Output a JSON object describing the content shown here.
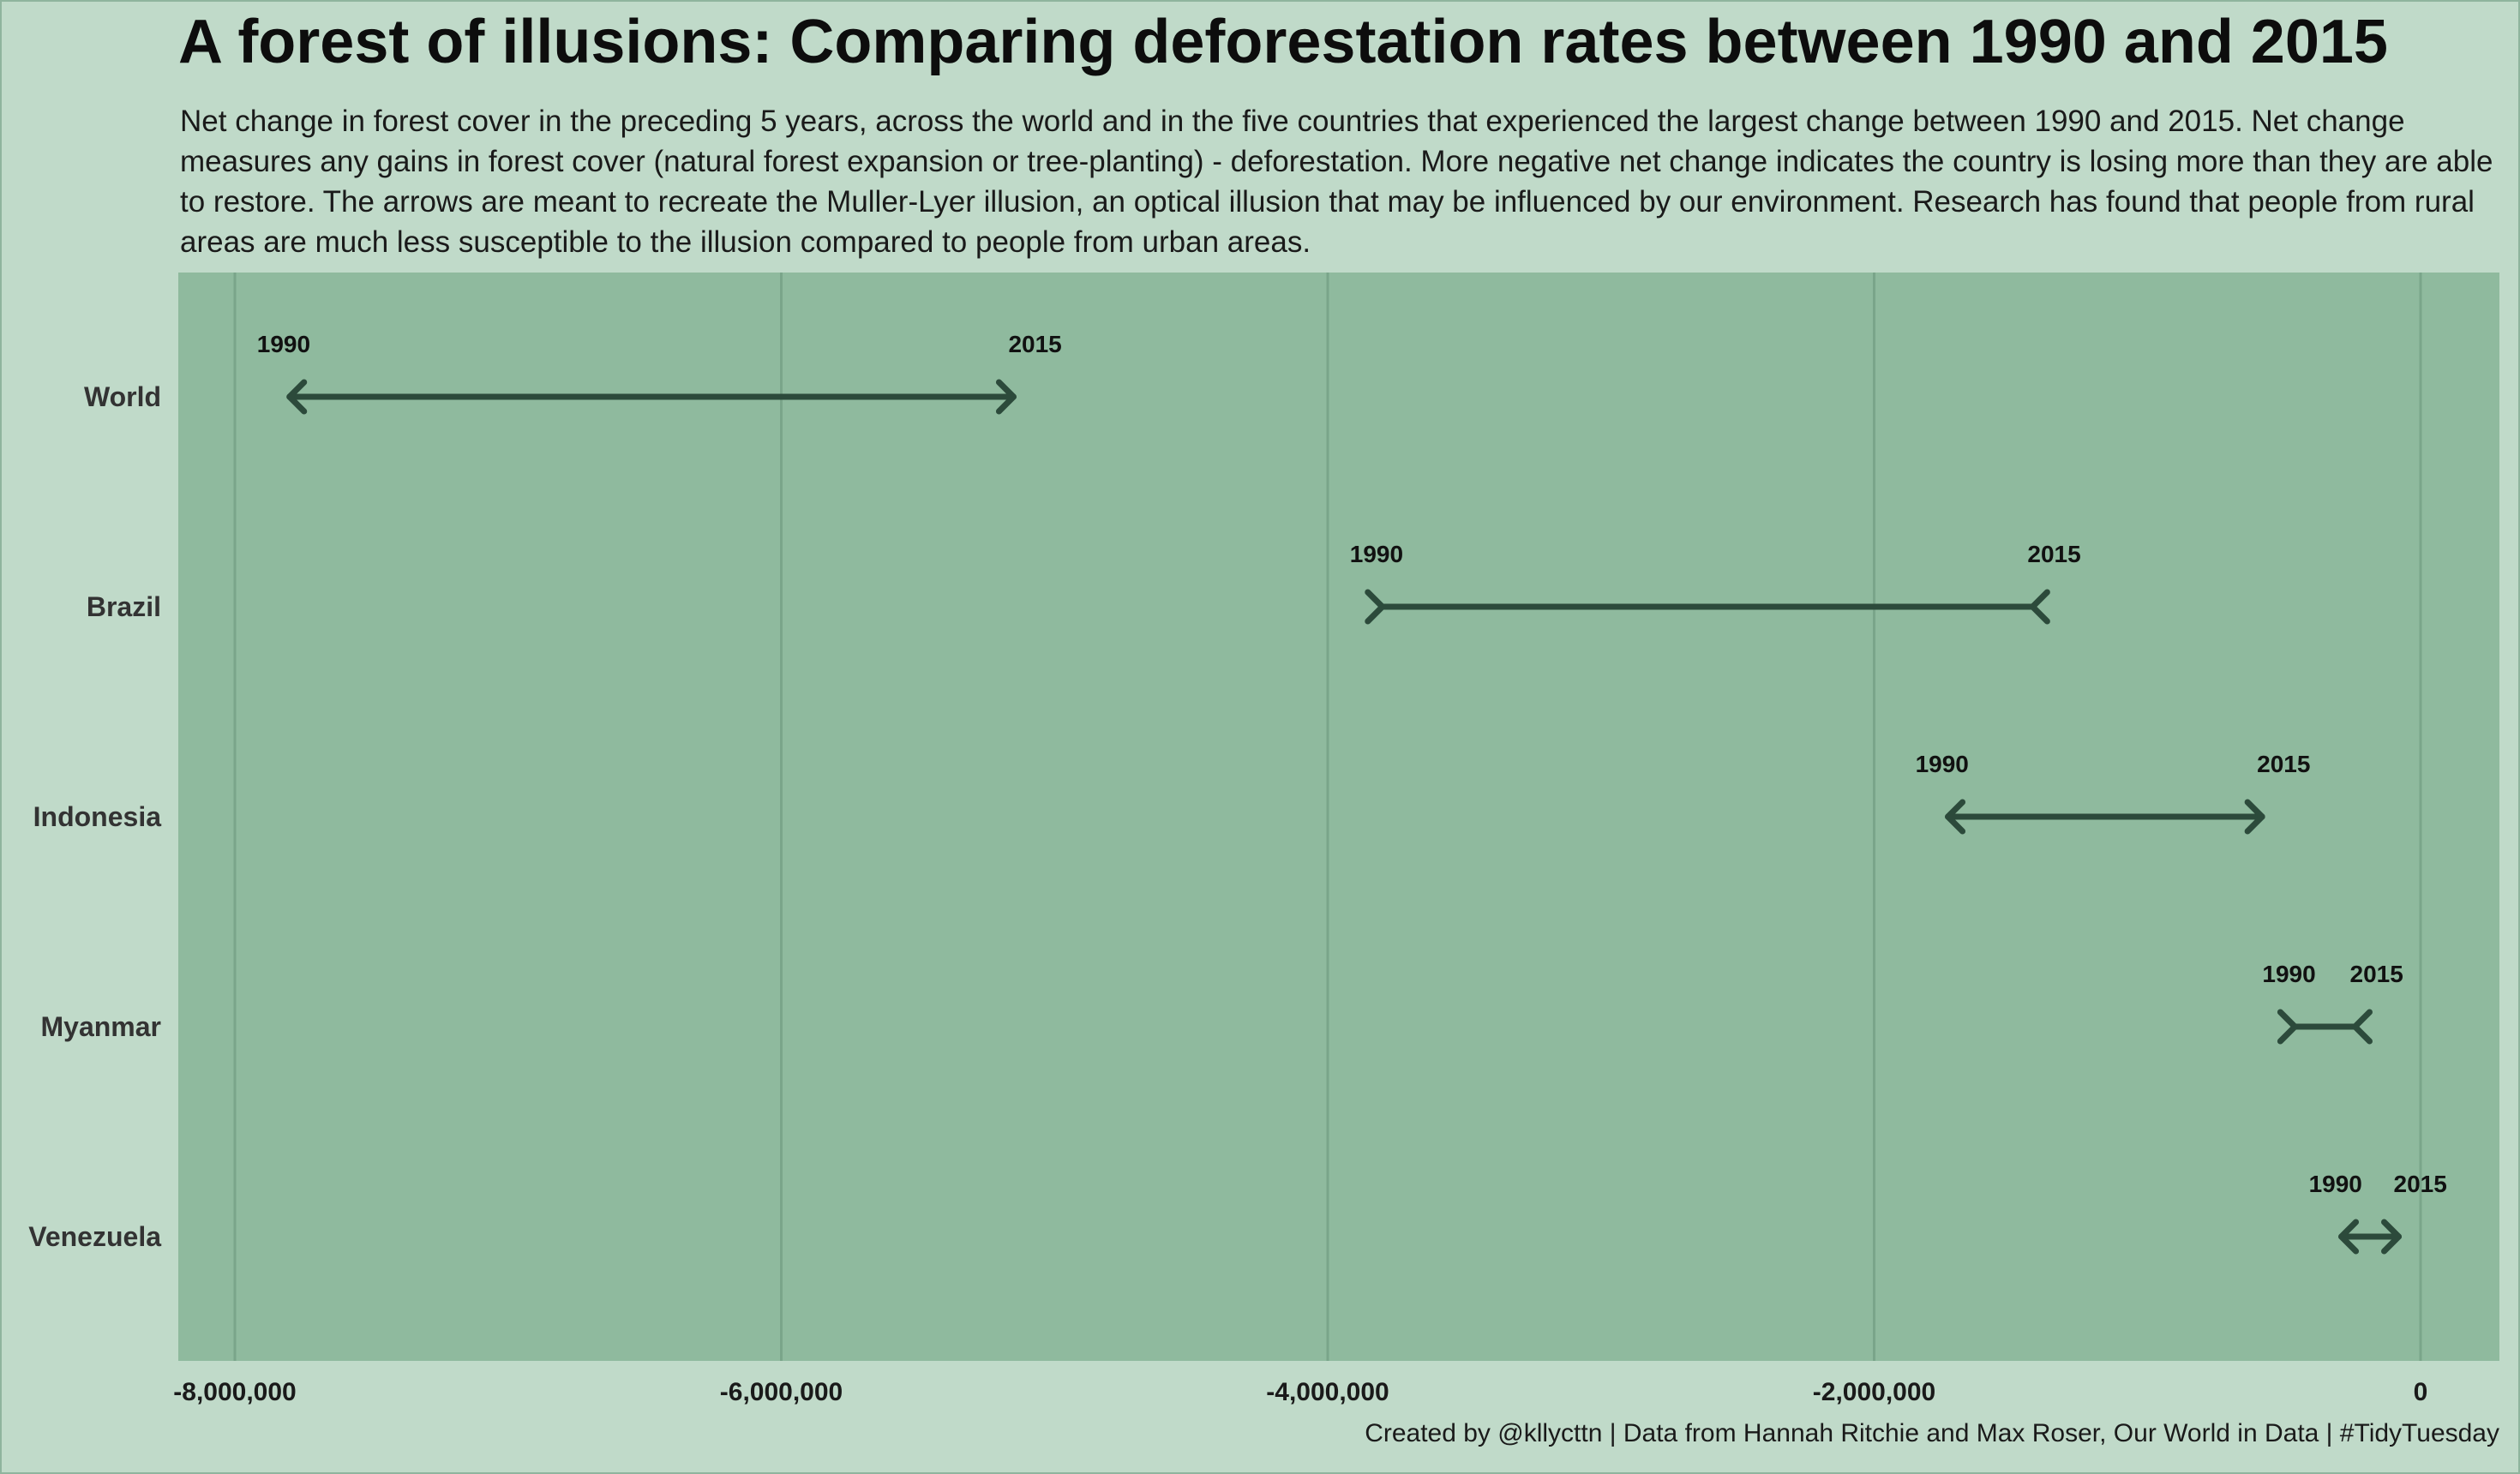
{
  "title": "A forest of illusions: Comparing deforestation rates between 1990 and 2015",
  "subtitle": "Net change in forest cover in the preceding 5 years, across the world and in the five countries that experienced the largest change between 1990 and 2015. Net change measures any gains in forest cover (natural forest expansion or tree-planting) - deforestation. More negative net change indicates the country is losing more than they are able to restore. The arrows are meant to recreate the Muller-Lyer illusion, an optical illusion that may be influenced by our environment. Research has found that people from rural areas are much less susceptible to the illusion compared to people from urban areas.",
  "caption": "Created by @kllycttn | Data from Hannah Ritchie and Max Roser, Our World in Data | #TidyTuesday",
  "colors": {
    "background": "#c0dac9",
    "panel": "#8fba9e",
    "grid": "#7aa58a",
    "arrow": "#2c4a3b"
  },
  "chart_data": {
    "type": "arrow-range",
    "title": "A forest of illusions: Comparing deforestation rates between 1990 and 2015",
    "xlabel": "",
    "ylabel": "",
    "xlim": [
      -8200000,
      300000
    ],
    "x_ticks": [
      -8000000,
      -6000000,
      -4000000,
      -2000000,
      0
    ],
    "x_tick_labels": [
      "-8,000,000",
      "-6,000,000",
      "-4,000,000",
      "-2,000,000",
      "0"
    ],
    "grid": true,
    "start_label": "1990",
    "end_label": "2015",
    "categories": [
      "World",
      "Brazil",
      "Indonesia",
      "Myanmar",
      "Venezuela"
    ],
    "series": [
      {
        "name": "World",
        "x1990": -7800000,
        "x2015": -5150000,
        "arrow_style": "outward"
      },
      {
        "name": "Brazil",
        "x1990": -3800000,
        "x2015": -1420000,
        "arrow_style": "inward"
      },
      {
        "name": "Indonesia",
        "x1990": -1730000,
        "x2015": -580000,
        "arrow_style": "outward"
      },
      {
        "name": "Myanmar",
        "x1990": -460000,
        "x2015": -240000,
        "arrow_style": "inward"
      },
      {
        "name": "Venezuela",
        "x1990": -290000,
        "x2015": -80000,
        "arrow_style": "outward"
      }
    ]
  }
}
